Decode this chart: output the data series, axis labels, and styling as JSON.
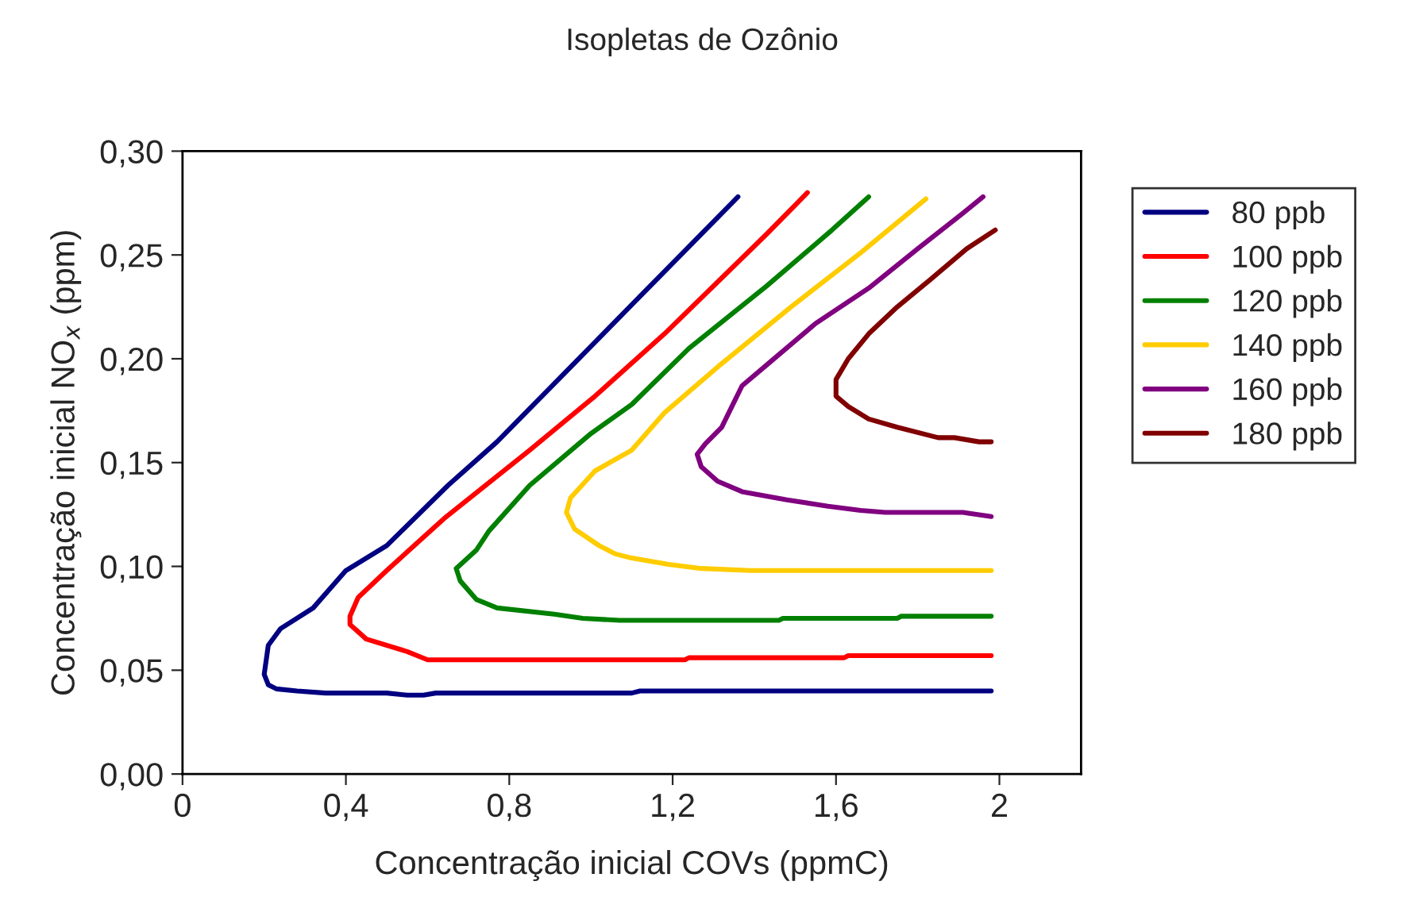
{
  "chart_data": {
    "type": "line",
    "title": "Isopletas de Ozônio",
    "xlabel": "Concentração inicial COVs (ppmC)",
    "ylabel": "Concentração inicial NO$_{x}$ (ppm)",
    "xlim": [
      0,
      2.2
    ],
    "xticks": [
      0,
      {
        "value": 0.4,
        "label": "0,4"
      },
      {
        "value": 0.8,
        "label": "0,8"
      },
      {
        "value": 1.2,
        "label": "1,2"
      },
      {
        "value": 1.6,
        "label": "1,6"
      },
      2
    ],
    "ylim": [
      0,
      0.3
    ],
    "yticks": [
      {
        "value": 0,
        "label": "0,00"
      },
      {
        "value": 0.05,
        "label": "0,05"
      },
      {
        "value": 0.1,
        "label": "0,10"
      },
      {
        "value": 0.15,
        "label": "0,15"
      },
      {
        "value": 0.2,
        "label": "0,20"
      },
      {
        "value": 0.25,
        "label": "0,25"
      },
      {
        "value": 0.3,
        "label": "0,30"
      }
    ],
    "grid": false,
    "legend": "right",
    "marker": "none",
    "line_style": "solid",
    "series": [
      {
        "name": "80 ppb",
        "color": "#000080",
        "x": [
          1.98,
          1.6,
          1.12,
          1.1,
          0.62,
          0.59,
          0.55,
          0.5,
          0.35,
          0.28,
          0.23,
          0.21,
          0.2,
          0.21,
          0.24,
          0.32,
          0.4,
          0.5,
          0.65,
          0.77,
          0.88,
          1.1,
          1.36
        ],
        "values": [
          0.04,
          0.04,
          0.04,
          0.039,
          0.039,
          0.038,
          0.038,
          0.039,
          0.039,
          0.04,
          0.041,
          0.043,
          0.048,
          0.062,
          0.07,
          0.08,
          0.098,
          0.11,
          0.139,
          0.16,
          0.182,
          0.226,
          0.278
        ]
      },
      {
        "name": "100 ppb",
        "color": "#ff0000",
        "x": [
          1.98,
          1.63,
          1.62,
          1.24,
          1.23,
          0.6,
          0.55,
          0.45,
          0.41,
          0.41,
          0.43,
          0.5,
          0.64,
          0.85,
          1.01,
          1.18,
          1.43,
          1.53
        ],
        "values": [
          0.057,
          0.057,
          0.056,
          0.056,
          0.055,
          0.055,
          0.059,
          0.065,
          0.072,
          0.076,
          0.085,
          0.098,
          0.123,
          0.156,
          0.182,
          0.212,
          0.26,
          0.28
        ]
      },
      {
        "name": "120 ppb",
        "color": "#008000",
        "x": [
          1.98,
          1.76,
          1.75,
          1.47,
          1.46,
          1.07,
          0.98,
          0.91,
          0.77,
          0.72,
          0.68,
          0.67,
          0.72,
          0.75,
          0.85,
          1.0,
          1.1,
          1.24,
          1.43,
          1.59,
          1.68
        ],
        "values": [
          0.076,
          0.076,
          0.075,
          0.075,
          0.074,
          0.074,
          0.075,
          0.077,
          0.08,
          0.084,
          0.093,
          0.099,
          0.108,
          0.117,
          0.139,
          0.164,
          0.178,
          0.205,
          0.235,
          0.262,
          0.278
        ]
      },
      {
        "name": "140 ppb",
        "color": "#ffcc00",
        "x": [
          1.98,
          1.39,
          1.27,
          1.19,
          1.1,
          1.06,
          1.02,
          0.96,
          0.94,
          0.95,
          1.01,
          1.1,
          1.18,
          1.31,
          1.49,
          1.66,
          1.82
        ],
        "values": [
          0.098,
          0.098,
          0.099,
          0.101,
          0.104,
          0.106,
          0.11,
          0.118,
          0.126,
          0.133,
          0.146,
          0.156,
          0.174,
          0.196,
          0.225,
          0.251,
          0.277
        ]
      },
      {
        "name": "160 ppb",
        "color": "#800080",
        "x": [
          1.98,
          1.91,
          1.72,
          1.66,
          1.58,
          1.48,
          1.37,
          1.31,
          1.27,
          1.26,
          1.28,
          1.32,
          1.37,
          1.43,
          1.55,
          1.68,
          1.8,
          1.91,
          1.96
        ],
        "values": [
          0.124,
          0.126,
          0.126,
          0.127,
          0.129,
          0.132,
          0.136,
          0.141,
          0.148,
          0.154,
          0.159,
          0.167,
          0.187,
          0.197,
          0.217,
          0.234,
          0.253,
          0.27,
          0.278
        ]
      },
      {
        "name": "180 ppb",
        "color": "#800000",
        "x": [
          1.98,
          1.95,
          1.89,
          1.85,
          1.75,
          1.68,
          1.63,
          1.6,
          1.6,
          1.63,
          1.68,
          1.75,
          1.83,
          1.92,
          1.99
        ],
        "values": [
          0.16,
          0.16,
          0.162,
          0.162,
          0.167,
          0.171,
          0.177,
          0.182,
          0.19,
          0.2,
          0.212,
          0.225,
          0.238,
          0.253,
          0.262
        ]
      }
    ]
  }
}
